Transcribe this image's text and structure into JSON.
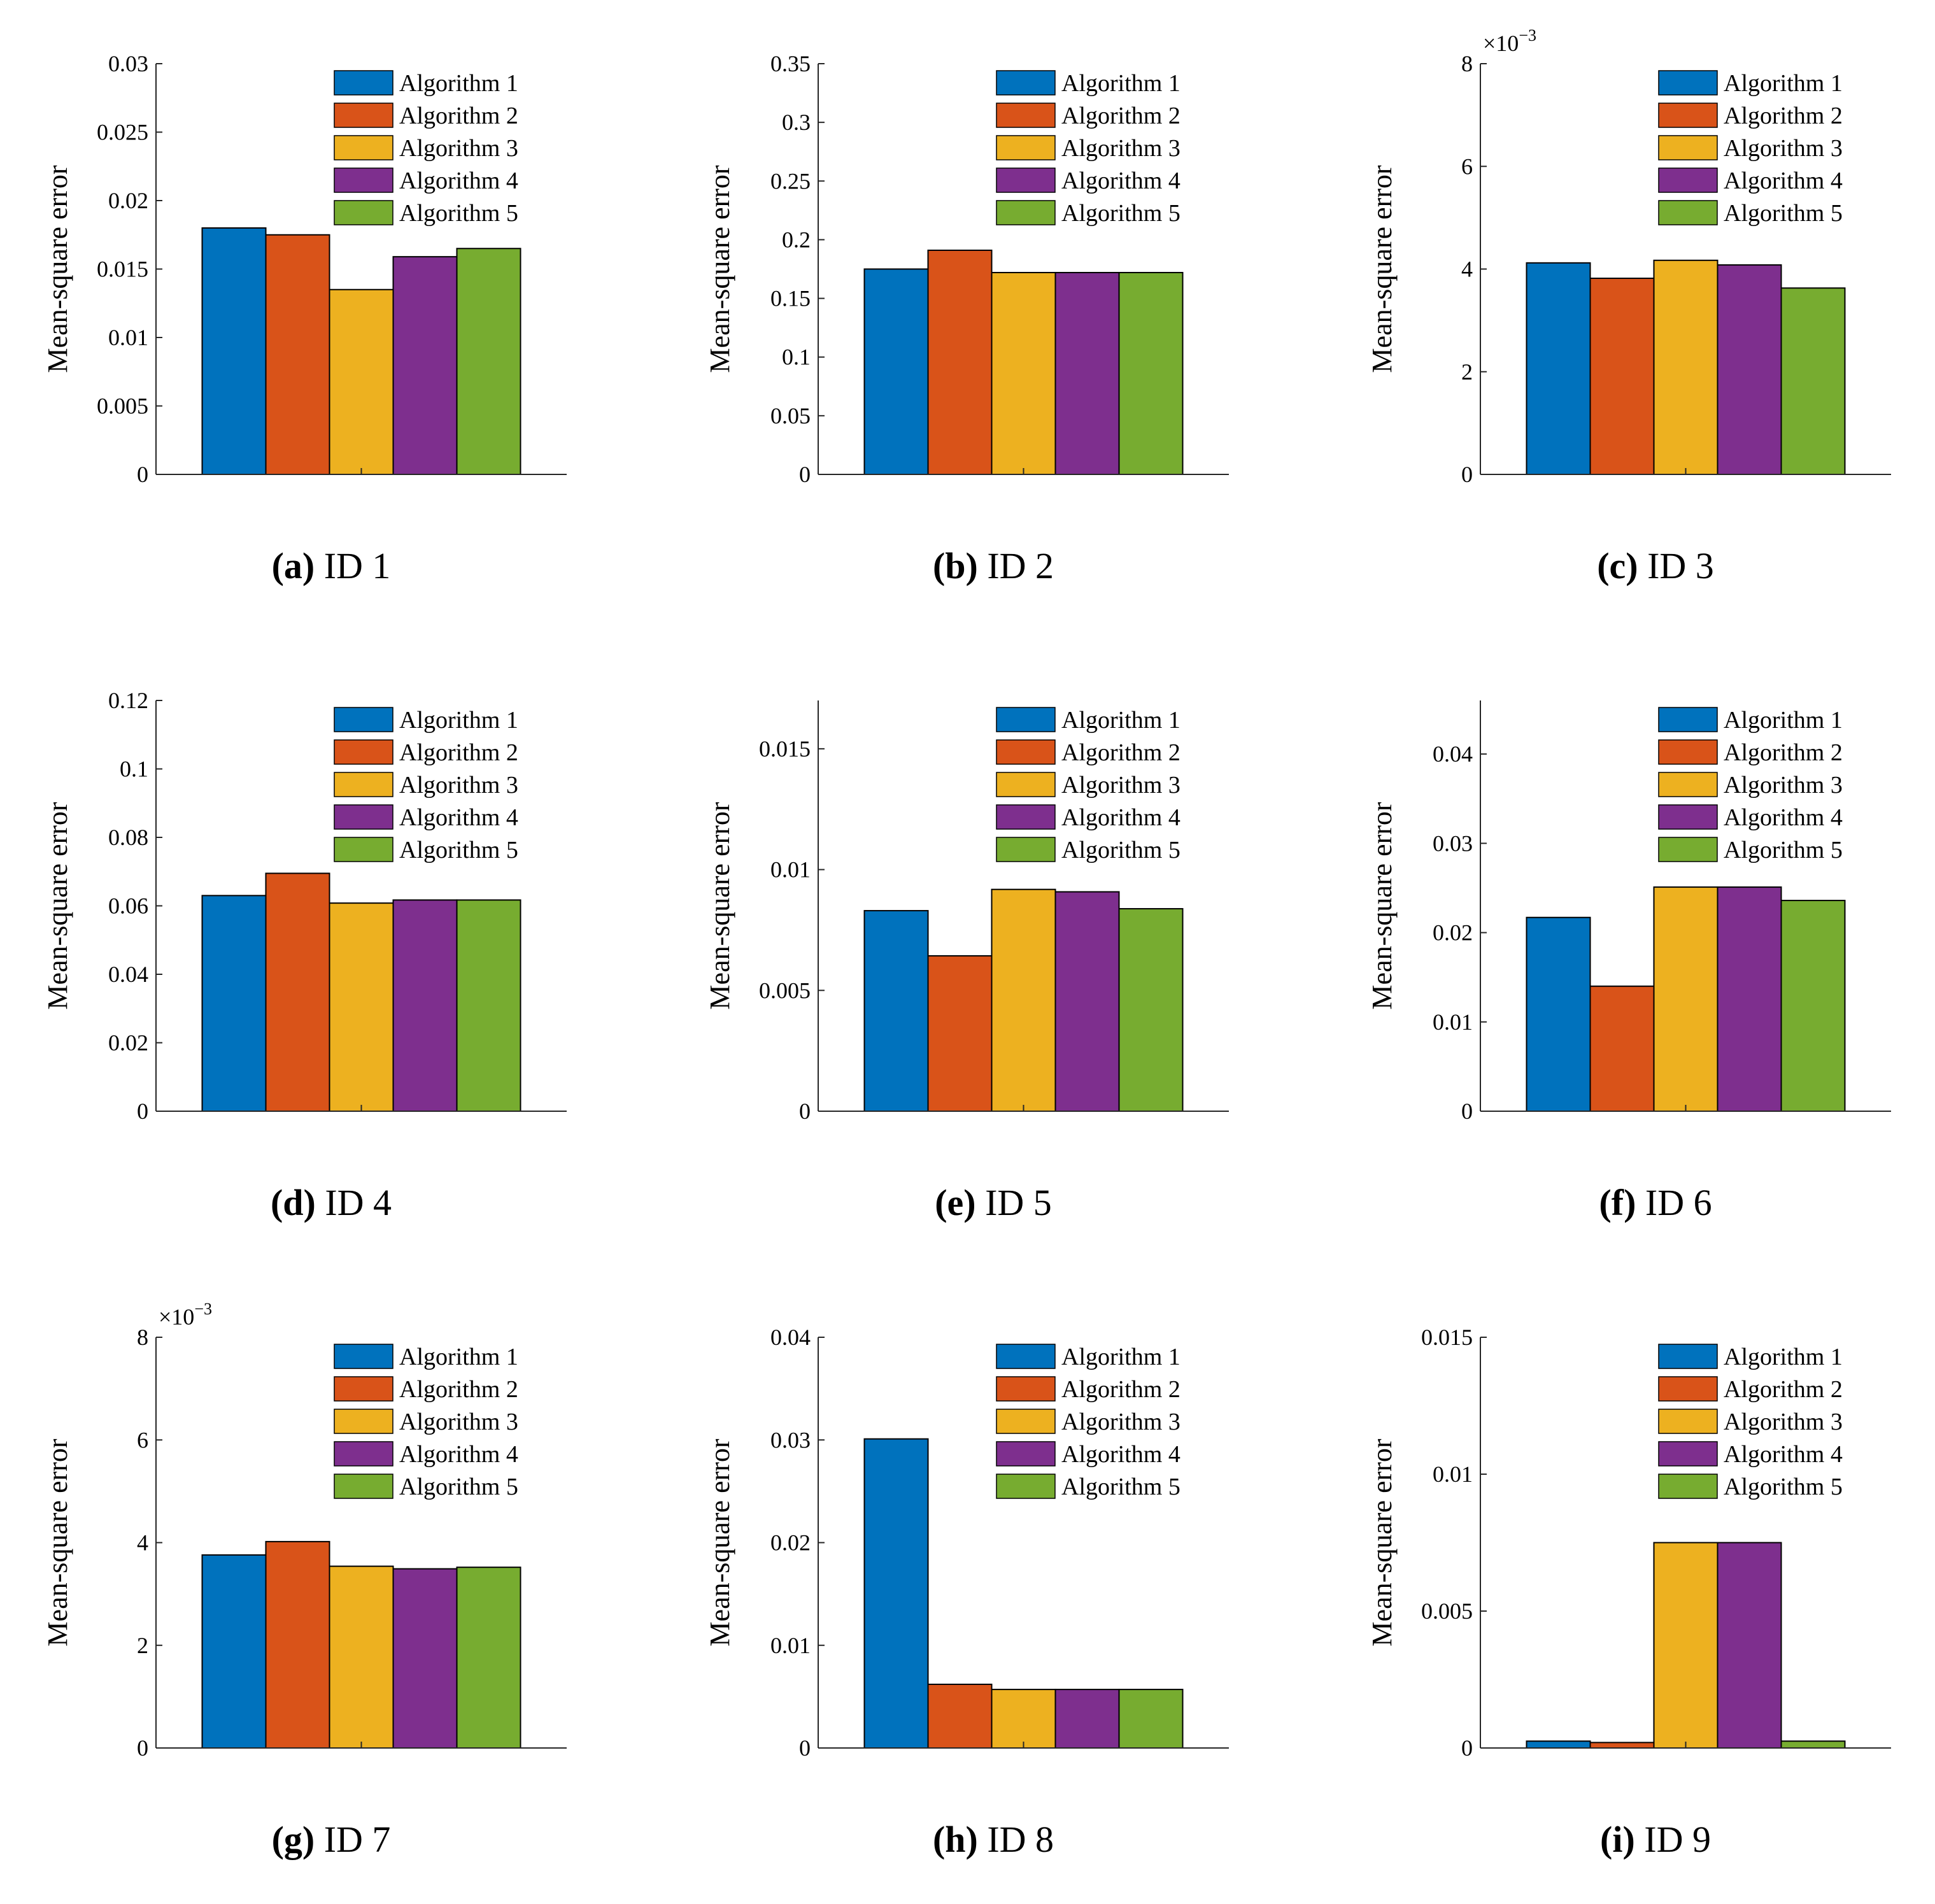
{
  "legend_entries": [
    "Algorithm 1",
    "Algorithm 2",
    "Algorithm 3",
    "Algorithm 4",
    "Algorithm 5"
  ],
  "colors": [
    "#0072BD",
    "#D95319",
    "#EDB120",
    "#7E2F8E",
    "#77AC30"
  ],
  "chart_data": [
    {
      "type": "bar",
      "letter": "a",
      "caption": "ID 1",
      "ylabel": "Mean-square error",
      "categories": [
        "Algorithm 1",
        "Algorithm 2",
        "Algorithm 3",
        "Algorithm 4",
        "Algorithm 5"
      ],
      "values": [
        0.018,
        0.0175,
        0.0135,
        0.0159,
        0.0165
      ],
      "ylim": [
        0,
        0.03
      ],
      "yticks": [
        0,
        0.005,
        0.01,
        0.015,
        0.02,
        0.025,
        0.03
      ],
      "ytick_labels": [
        "0",
        "0.005",
        "0.01",
        "0.015",
        "0.02",
        "0.025",
        "0.03"
      ],
      "exponent": "",
      "legend": "top-right"
    },
    {
      "type": "bar",
      "letter": "b",
      "caption": "ID 2",
      "ylabel": "Mean-square error",
      "categories": [
        "Algorithm 1",
        "Algorithm 2",
        "Algorithm 3",
        "Algorithm 4",
        "Algorithm 5"
      ],
      "values": [
        0.175,
        0.191,
        0.172,
        0.172,
        0.172
      ],
      "ylim": [
        0,
        0.35
      ],
      "yticks": [
        0,
        0.05,
        0.1,
        0.15,
        0.2,
        0.25,
        0.3,
        0.35
      ],
      "ytick_labels": [
        "0",
        "0.05",
        "0.1",
        "0.15",
        "0.2",
        "0.25",
        "0.3",
        "0.35"
      ],
      "exponent": "",
      "legend": "top-right"
    },
    {
      "type": "bar",
      "letter": "c",
      "caption": "ID 3",
      "ylabel": "Mean-square error",
      "categories": [
        "Algorithm 1",
        "Algorithm 2",
        "Algorithm 3",
        "Algorithm 4",
        "Algorithm 5"
      ],
      "values": [
        0.00412,
        0.00382,
        0.00417,
        0.00408,
        0.00363
      ],
      "ylim": [
        0,
        0.008
      ],
      "yticks": [
        0,
        0.002,
        0.004,
        0.006,
        0.008
      ],
      "ytick_labels": [
        "0",
        "2",
        "4",
        "6",
        "8"
      ],
      "exponent": "×10",
      "exponent_power": "−3",
      "legend": "top-right"
    },
    {
      "type": "bar",
      "letter": "d",
      "caption": "ID 4",
      "ylabel": "Mean-square error",
      "categories": [
        "Algorithm 1",
        "Algorithm 2",
        "Algorithm 3",
        "Algorithm 4",
        "Algorithm 5"
      ],
      "values": [
        0.063,
        0.0695,
        0.0608,
        0.0617,
        0.0617
      ],
      "ylim": [
        0,
        0.12
      ],
      "yticks": [
        0,
        0.02,
        0.04,
        0.06,
        0.08,
        0.1,
        0.12
      ],
      "ytick_labels": [
        "0",
        "0.02",
        "0.04",
        "0.06",
        "0.08",
        "0.1",
        "0.12"
      ],
      "exponent": "",
      "legend": "top-right"
    },
    {
      "type": "bar",
      "letter": "e",
      "caption": "ID 5",
      "ylabel": "Mean-square error",
      "categories": [
        "Algorithm 1",
        "Algorithm 2",
        "Algorithm 3",
        "Algorithm 4",
        "Algorithm 5"
      ],
      "values": [
        0.0083,
        0.00643,
        0.00918,
        0.00908,
        0.00838
      ],
      "ylim": [
        0,
        0.017
      ],
      "yticks": [
        0,
        0.005,
        0.01,
        0.015
      ],
      "ytick_labels": [
        "0",
        "0.005",
        "0.01",
        "0.015"
      ],
      "exponent": "",
      "legend": "top-right"
    },
    {
      "type": "bar",
      "letter": "f",
      "caption": "ID 6",
      "ylabel": "Mean-square error",
      "categories": [
        "Algorithm 1",
        "Algorithm 2",
        "Algorithm 3",
        "Algorithm 4",
        "Algorithm 5"
      ],
      "values": [
        0.0217,
        0.014,
        0.0251,
        0.0251,
        0.0236
      ],
      "ylim": [
        0,
        0.046
      ],
      "yticks": [
        0,
        0.01,
        0.02,
        0.03,
        0.04
      ],
      "ytick_labels": [
        "0",
        "0.01",
        "0.02",
        "0.03",
        "0.04"
      ],
      "exponent": "",
      "legend": "top-right"
    },
    {
      "type": "bar",
      "letter": "g",
      "caption": "ID 7",
      "ylabel": "Mean-square error",
      "categories": [
        "Algorithm 1",
        "Algorithm 2",
        "Algorithm 3",
        "Algorithm 4",
        "Algorithm 5"
      ],
      "values": [
        0.00376,
        0.00402,
        0.00354,
        0.00349,
        0.00352
      ],
      "ylim": [
        0,
        0.008
      ],
      "yticks": [
        0,
        0.002,
        0.004,
        0.006,
        0.008
      ],
      "ytick_labels": [
        "0",
        "2",
        "4",
        "6",
        "8"
      ],
      "exponent": "×10",
      "exponent_power": "−3",
      "legend": "top-right"
    },
    {
      "type": "bar",
      "letter": "h",
      "caption": "ID 8",
      "ylabel": "Mean-square error",
      "categories": [
        "Algorithm 1",
        "Algorithm 2",
        "Algorithm 3",
        "Algorithm 4",
        "Algorithm 5"
      ],
      "values": [
        0.0301,
        0.0062,
        0.0057,
        0.0057,
        0.0057
      ],
      "ylim": [
        0,
        0.04
      ],
      "yticks": [
        0,
        0.01,
        0.02,
        0.03,
        0.04
      ],
      "ytick_labels": [
        "0",
        "0.01",
        "0.02",
        "0.03",
        "0.04"
      ],
      "exponent": "",
      "legend": "top-right"
    },
    {
      "type": "bar",
      "letter": "i",
      "caption": "ID 9",
      "ylabel": "Mean-square error",
      "categories": [
        "Algorithm 1",
        "Algorithm 2",
        "Algorithm 3",
        "Algorithm 4",
        "Algorithm 5"
      ],
      "values": [
        0.00025,
        0.0002,
        0.0075,
        0.0075,
        0.00025
      ],
      "ylim": [
        0,
        0.015
      ],
      "yticks": [
        0,
        0.005,
        0.01,
        0.015
      ],
      "ytick_labels": [
        "0",
        "0.005",
        "0.01",
        "0.015"
      ],
      "exponent": "",
      "legend": "top-right"
    }
  ]
}
